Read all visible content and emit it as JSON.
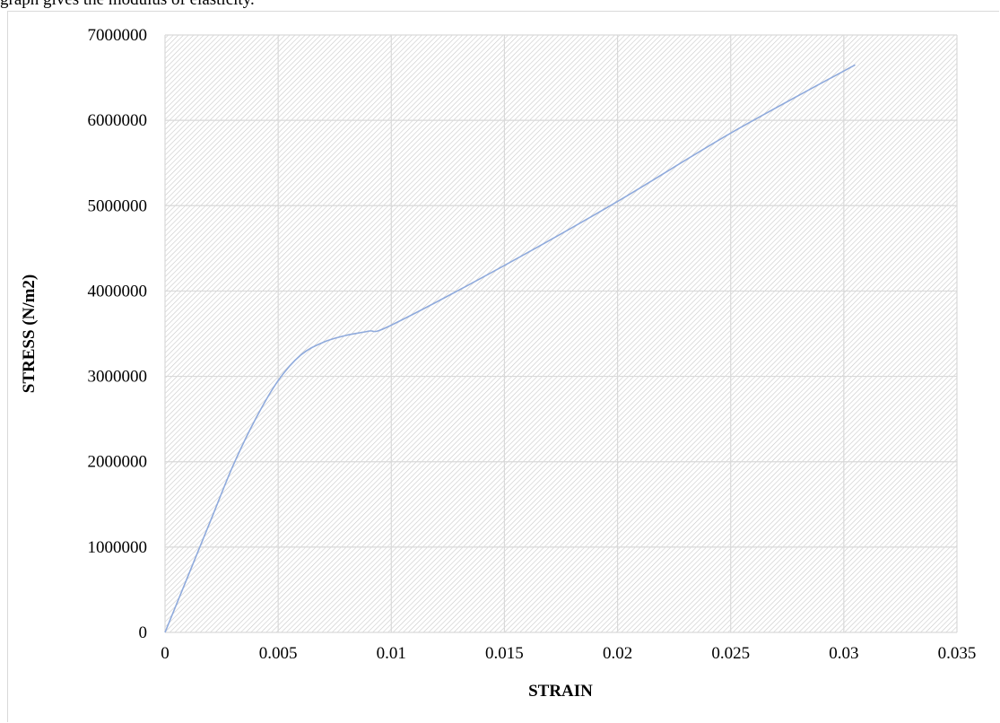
{
  "page": {
    "header_text": "graph gives the modulus of elasticity."
  },
  "chart_data": {
    "type": "line",
    "xlabel": "STRAIN",
    "ylabel": "STRESS (N/m2)",
    "xlim": [
      0,
      0.035
    ],
    "ylim": [
      0,
      7000000
    ],
    "x_ticks": [
      "0",
      "0.005",
      "0.01",
      "0.015",
      "0.02",
      "0.025",
      "0.03",
      "0.035"
    ],
    "y_ticks": [
      "0",
      "1000000",
      "2000000",
      "3000000",
      "4000000",
      "5000000",
      "6000000",
      "7000000"
    ],
    "grid": true,
    "series": [
      {
        "color": "#8faadc",
        "x": [
          0,
          0.001,
          0.002,
          0.003,
          0.004,
          0.005,
          0.006,
          0.007,
          0.008,
          0.009,
          0.01,
          0.015,
          0.02,
          0.025,
          0.0305
        ],
        "y": [
          0,
          650000,
          1300000,
          1950000,
          2500000,
          2950000,
          3250000,
          3400000,
          3480000,
          3530000,
          3600000,
          4300000,
          5050000,
          5850000,
          6650000
        ]
      }
    ]
  }
}
